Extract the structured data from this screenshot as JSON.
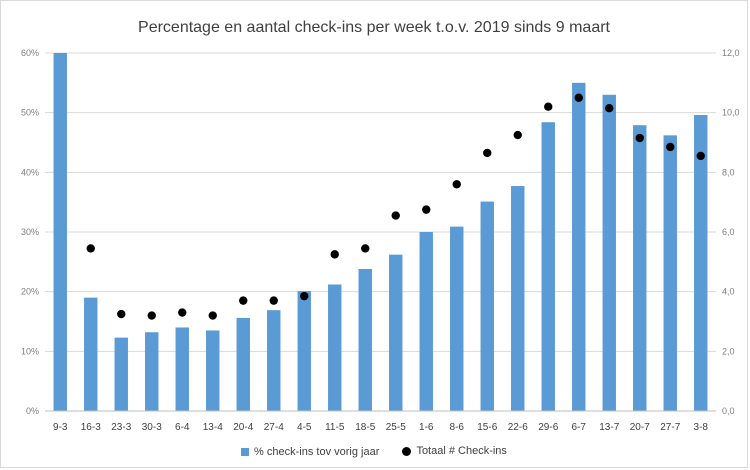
{
  "chart_data": {
    "type": "bar",
    "title": "Percentage en aantal check-ins per week t.o.v. 2019 sinds 9 maart",
    "categories": [
      "9-3",
      "16-3",
      "23-3",
      "30-3",
      "6-4",
      "13-4",
      "20-4",
      "27-4",
      "4-5",
      "11-5",
      "18-5",
      "25-5",
      "1-6",
      "8-6",
      "15-6",
      "22-6",
      "29-6",
      "6-7",
      "13-7",
      "20-7",
      "27-7",
      "3-8"
    ],
    "series": [
      {
        "name": "% check-ins tov vorig jaar",
        "kind": "bar",
        "axis": "left",
        "color": "#5b9bd5",
        "values": [
          60,
          19,
          12.3,
          13.2,
          14,
          13.5,
          15.6,
          16.9,
          20.1,
          21.2,
          23.8,
          26.2,
          30,
          30.9,
          35.1,
          37.7,
          48.4,
          55,
          53,
          47.9,
          46.2,
          49.6
        ]
      },
      {
        "name": "Totaal # Check-ins",
        "kind": "scatter",
        "axis": "right",
        "color": "#000000",
        "values": [
          null,
          5.45,
          3.25,
          3.2,
          3.3,
          3.2,
          3.7,
          3.7,
          3.85,
          5.25,
          5.45,
          6.55,
          6.75,
          7.6,
          8.65,
          9.25,
          10.2,
          10.5,
          10.15,
          9.15,
          8.85,
          8.55
        ]
      }
    ],
    "y_left": {
      "ylim": [
        0,
        60
      ],
      "ticks": [
        "0%",
        "10%",
        "20%",
        "30%",
        "40%",
        "50%",
        "60%"
      ]
    },
    "y_right": {
      "ylim": [
        0,
        12
      ],
      "ticks": [
        "0,0",
        "2,0",
        "4,0",
        "6,0",
        "8,0",
        "10,0",
        "12,0"
      ]
    },
    "grid": true,
    "legend_position": "bottom"
  }
}
